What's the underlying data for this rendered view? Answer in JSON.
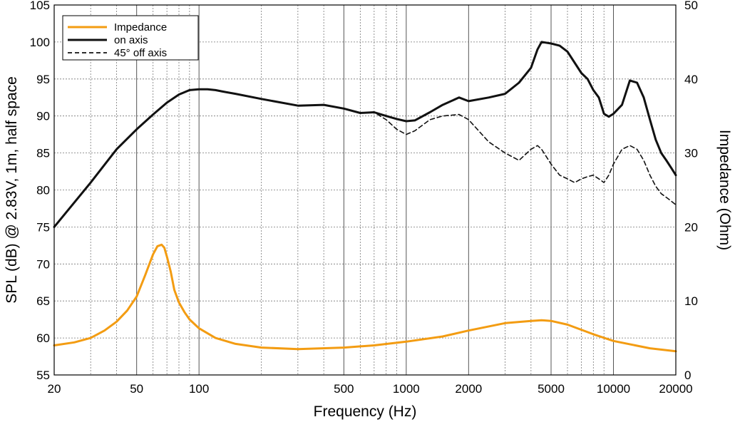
{
  "chart_data": {
    "type": "line",
    "xlabel": "Frequency (Hz)",
    "ylabel_left": "SPL (dB) @ 2.83V, 1m, half space",
    "ylabel_right": "Impedance (Ohm)",
    "x_scale": "log",
    "xlim": [
      20,
      20000
    ],
    "ylim_left": [
      55,
      105
    ],
    "ylim_right": [
      0,
      50
    ],
    "grid": true,
    "legend_position": "top-left",
    "x_ticks": [
      20,
      50,
      100,
      500,
      1000,
      2000,
      5000,
      10000,
      20000
    ],
    "x_tick_labels": [
      "20",
      "50",
      "100",
      "500",
      "1000",
      "2000",
      "5000",
      "10000",
      "20000"
    ],
    "y_left_ticks": [
      55,
      60,
      65,
      70,
      75,
      80,
      85,
      90,
      95,
      100,
      105
    ],
    "y_left_tick_labels": [
      "55",
      "60",
      "65",
      "70",
      "75",
      "80",
      "85",
      "90",
      "95",
      "100",
      "105"
    ],
    "y_right_ticks": [
      0,
      10,
      20,
      30,
      40,
      50
    ],
    "y_right_tick_labels": [
      "0",
      "10",
      "20",
      "30",
      "40",
      "50"
    ],
    "series": [
      {
        "name": "Impedance",
        "axis": "right",
        "color": "#f39c12",
        "style": "solid",
        "x": [
          20,
          25,
          30,
          35,
          40,
          45,
          50,
          55,
          60,
          63,
          66,
          68,
          70,
          73,
          76,
          80,
          85,
          90,
          100,
          120,
          150,
          200,
          300,
          500,
          700,
          1000,
          1500,
          2000,
          3000,
          4000,
          4500,
          5000,
          6000,
          8000,
          10000,
          15000,
          20000
        ],
        "values": [
          4.0,
          4.4,
          5.0,
          6.0,
          7.2,
          8.7,
          10.6,
          13.5,
          16.3,
          17.4,
          17.6,
          17.2,
          16.0,
          14.0,
          11.5,
          9.8,
          8.5,
          7.5,
          6.3,
          5.0,
          4.2,
          3.7,
          3.5,
          3.7,
          4.0,
          4.5,
          5.2,
          6.0,
          7.0,
          7.3,
          7.4,
          7.3,
          6.8,
          5.5,
          4.6,
          3.6,
          3.2
        ]
      },
      {
        "name": "on axis",
        "axis": "left",
        "color": "#111111",
        "style": "solid",
        "x": [
          20,
          30,
          40,
          50,
          60,
          70,
          80,
          90,
          100,
          110,
          120,
          130,
          150,
          200,
          300,
          400,
          500,
          600,
          700,
          800,
          900,
          1000,
          1100,
          1300,
          1500,
          1800,
          2000,
          2500,
          3000,
          3500,
          4000,
          4300,
          4500,
          5000,
          5500,
          6000,
          6500,
          7000,
          7500,
          8000,
          8500,
          9000,
          9500,
          10000,
          11000,
          12000,
          13000,
          14000,
          15000,
          16000,
          17000,
          18000,
          19000,
          20000
        ],
        "values": [
          75.0,
          81.0,
          85.5,
          88.2,
          90.2,
          91.8,
          92.9,
          93.5,
          93.6,
          93.6,
          93.5,
          93.3,
          93.0,
          92.3,
          91.4,
          91.5,
          91.0,
          90.4,
          90.5,
          90.0,
          89.6,
          89.3,
          89.4,
          90.5,
          91.5,
          92.5,
          92.0,
          92.5,
          93.0,
          94.5,
          96.5,
          99.0,
          100.0,
          99.8,
          99.5,
          98.7,
          97.2,
          95.8,
          95.0,
          93.5,
          92.5,
          90.3,
          89.9,
          90.3,
          91.5,
          94.8,
          94.5,
          92.5,
          89.5,
          86.8,
          85.0,
          84.0,
          83.0,
          82.0
        ]
      },
      {
        "name": "45° off axis",
        "axis": "left",
        "color": "#111111",
        "style": "dashed",
        "x": [
          20,
          30,
          40,
          50,
          60,
          70,
          80,
          90,
          100,
          110,
          120,
          130,
          150,
          200,
          300,
          400,
          500,
          600,
          700,
          800,
          900,
          1000,
          1100,
          1300,
          1500,
          1800,
          2000,
          2500,
          3000,
          3500,
          4000,
          4300,
          4500,
          5000,
          5500,
          6000,
          6500,
          7000,
          7500,
          8000,
          8500,
          9000,
          9500,
          10000,
          11000,
          12000,
          13000,
          14000,
          15000,
          16000,
          17000,
          18000,
          19000,
          20000
        ],
        "values": [
          75.0,
          81.0,
          85.5,
          88.2,
          90.2,
          91.8,
          92.9,
          93.5,
          93.6,
          93.6,
          93.5,
          93.3,
          93.0,
          92.3,
          91.4,
          91.5,
          91.0,
          90.4,
          90.5,
          89.5,
          88.2,
          87.5,
          88.0,
          89.5,
          90.0,
          90.2,
          89.5,
          86.5,
          85.0,
          84.0,
          85.5,
          86.0,
          85.5,
          83.5,
          82.0,
          81.5,
          81.0,
          81.5,
          81.8,
          82.0,
          81.5,
          81.0,
          82.0,
          83.5,
          85.5,
          86.0,
          85.5,
          84.0,
          82.0,
          80.5,
          79.5,
          79.0,
          78.5,
          78.0
        ]
      }
    ]
  }
}
